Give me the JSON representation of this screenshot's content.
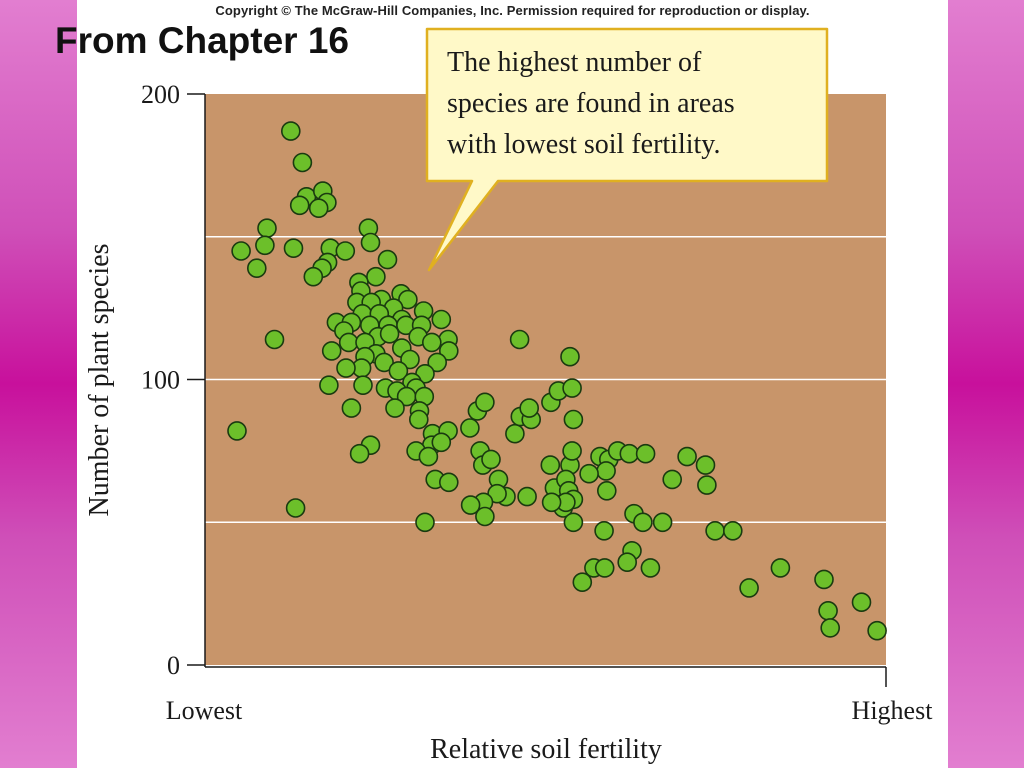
{
  "header": {
    "copyright": "Copyright © The McGraw-Hill Companies, Inc. Permission required for reproduction or display.",
    "title": "From Chapter 16"
  },
  "colors": {
    "background_magenta": "#c8109c",
    "plot_background": "#c8956a",
    "point_fill": "#6cbf2a",
    "callout_fill": "#fff9c8",
    "callout_border": "#e0b020"
  },
  "callout": {
    "lines": [
      "The highest number of",
      "species are found in areas",
      "with lowest soil fertility."
    ]
  },
  "chart_data": {
    "type": "scatter",
    "xlabel": "Relative soil fertility",
    "ylabel": "Number of plant species",
    "x_tick_labels": [
      "Lowest",
      "Highest"
    ],
    "y_ticks": [
      0,
      100,
      200
    ],
    "xlim": [
      0,
      100
    ],
    "ylim": [
      0,
      200
    ],
    "gridlines_y": [
      50,
      100,
      150
    ],
    "grid": true,
    "series": [
      {
        "points": [
          [
            12.6,
            187
          ],
          [
            14.3,
            176
          ],
          [
            14.9,
            164
          ],
          [
            17.3,
            166
          ],
          [
            17.9,
            162
          ],
          [
            16.7,
            160
          ],
          [
            13.9,
            161
          ],
          [
            9.1,
            153
          ],
          [
            24.0,
            153
          ],
          [
            8.8,
            147
          ],
          [
            5.3,
            145
          ],
          [
            13.0,
            146
          ],
          [
            18.4,
            146
          ],
          [
            20.6,
            145
          ],
          [
            24.3,
            148
          ],
          [
            18.0,
            141
          ],
          [
            26.8,
            142
          ],
          [
            7.6,
            139
          ],
          [
            17.2,
            139
          ],
          [
            15.9,
            136
          ],
          [
            25.1,
            136
          ],
          [
            22.6,
            134
          ],
          [
            28.8,
            130
          ],
          [
            22.9,
            131
          ],
          [
            25.9,
            128
          ],
          [
            29.8,
            128
          ],
          [
            22.3,
            127
          ],
          [
            24.4,
            127
          ],
          [
            27.7,
            125
          ],
          [
            32.1,
            124
          ],
          [
            23.1,
            123
          ],
          [
            25.6,
            123
          ],
          [
            28.9,
            121
          ],
          [
            34.7,
            121
          ],
          [
            19.3,
            120
          ],
          [
            21.5,
            120
          ],
          [
            24.2,
            119
          ],
          [
            26.9,
            119
          ],
          [
            29.5,
            119
          ],
          [
            31.8,
            119
          ],
          [
            20.4,
            117
          ],
          [
            25.4,
            115
          ],
          [
            27.1,
            116
          ],
          [
            31.3,
            115
          ],
          [
            35.7,
            114
          ],
          [
            10.2,
            114
          ],
          [
            21.1,
            113
          ],
          [
            23.5,
            113
          ],
          [
            33.3,
            113
          ],
          [
            28.9,
            111
          ],
          [
            18.6,
            110
          ],
          [
            25.1,
            109
          ],
          [
            23.5,
            108
          ],
          [
            35.8,
            110
          ],
          [
            26.3,
            106
          ],
          [
            30.1,
            107
          ],
          [
            34.1,
            106
          ],
          [
            23.0,
            104
          ],
          [
            20.7,
            104
          ],
          [
            28.4,
            103
          ],
          [
            32.3,
            102
          ],
          [
            30.4,
            99
          ],
          [
            18.2,
            98
          ],
          [
            23.2,
            98
          ],
          [
            26.5,
            97
          ],
          [
            28.2,
            96
          ],
          [
            31.0,
            97
          ],
          [
            29.6,
            94
          ],
          [
            32.2,
            94
          ],
          [
            27.9,
            90
          ],
          [
            21.5,
            90
          ],
          [
            31.5,
            89
          ],
          [
            31.4,
            86
          ],
          [
            4.7,
            82
          ],
          [
            33.4,
            81
          ],
          [
            35.7,
            82
          ],
          [
            38.9,
            83
          ],
          [
            45.5,
            81
          ],
          [
            40.0,
            89
          ],
          [
            41.1,
            92
          ],
          [
            46.3,
            87
          ],
          [
            47.9,
            86
          ],
          [
            47.6,
            90
          ],
          [
            50.8,
            92
          ],
          [
            51.9,
            96
          ],
          [
            53.9,
            97
          ],
          [
            53.6,
            108
          ],
          [
            46.2,
            114
          ],
          [
            54.1,
            86
          ],
          [
            33.3,
            77
          ],
          [
            34.7,
            78
          ],
          [
            24.3,
            77
          ],
          [
            22.7,
            74
          ],
          [
            31.0,
            75
          ],
          [
            40.4,
            75
          ],
          [
            32.8,
            73
          ],
          [
            40.8,
            70
          ],
          [
            42.0,
            72
          ],
          [
            50.7,
            70
          ],
          [
            53.6,
            70
          ],
          [
            53.9,
            75
          ],
          [
            58.0,
            73
          ],
          [
            59.3,
            72
          ],
          [
            58.9,
            68
          ],
          [
            60.6,
            75
          ],
          [
            62.3,
            74
          ],
          [
            64.7,
            74
          ],
          [
            70.8,
            73
          ],
          [
            73.5,
            70
          ],
          [
            56.4,
            67
          ],
          [
            68.6,
            65
          ],
          [
            73.7,
            63
          ],
          [
            43.1,
            65
          ],
          [
            33.8,
            65
          ],
          [
            35.8,
            64
          ],
          [
            59.0,
            61
          ],
          [
            51.3,
            62
          ],
          [
            53.0,
            65
          ],
          [
            53.4,
            61
          ],
          [
            54.1,
            58
          ],
          [
            52.6,
            55
          ],
          [
            53.0,
            57
          ],
          [
            50.9,
            57
          ],
          [
            44.2,
            59
          ],
          [
            47.3,
            59
          ],
          [
            42.9,
            60
          ],
          [
            40.9,
            57
          ],
          [
            39.0,
            56
          ],
          [
            41.1,
            52
          ],
          [
            54.1,
            50
          ],
          [
            63.0,
            53
          ],
          [
            64.3,
            50
          ],
          [
            67.2,
            50
          ],
          [
            58.6,
            47
          ],
          [
            74.9,
            47
          ],
          [
            77.5,
            47
          ],
          [
            13.3,
            55
          ],
          [
            32.3,
            50
          ],
          [
            62.7,
            40
          ],
          [
            65.4,
            34
          ],
          [
            62.0,
            36
          ],
          [
            57.1,
            34
          ],
          [
            58.7,
            34
          ],
          [
            55.4,
            29
          ],
          [
            79.9,
            27
          ],
          [
            84.5,
            34
          ],
          [
            90.9,
            30
          ],
          [
            91.5,
            19
          ],
          [
            91.8,
            13
          ],
          [
            96.4,
            22
          ],
          [
            98.7,
            12
          ]
        ]
      }
    ]
  }
}
